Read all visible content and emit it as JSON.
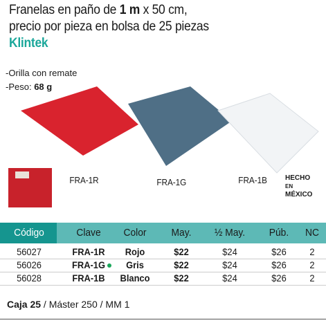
{
  "header": {
    "title_pre": "Franelas en paño de ",
    "title_bold": "1 m",
    "title_post": " x 50 cm,",
    "title_line2": "precio por pieza en bolsa de 25 piezas",
    "brand": "Klintek"
  },
  "features": [
    {
      "text": "-Orilla con remate"
    },
    {
      "text": "-Peso: ",
      "bold": "68 g"
    }
  ],
  "products": [
    {
      "label": "FRA-1R"
    },
    {
      "label": "FRA-1G"
    },
    {
      "label": "FRA-1B"
    }
  ],
  "badge": {
    "line1": "HECHO",
    "line2": "EN",
    "line3": "MÉXICO"
  },
  "table": {
    "columns": [
      "Código",
      "Clave",
      "Color",
      "May.",
      "½ May.",
      "Púb.",
      "NC"
    ],
    "rows": [
      {
        "cells": [
          "56027",
          "FRA-1R",
          "Rojo",
          "$22",
          "$24",
          "$26",
          "2"
        ],
        "new": false
      },
      {
        "cells": [
          "56026",
          "FRA-1G",
          "Gris",
          "$22",
          "$24",
          "$26",
          "2"
        ],
        "new": true
      },
      {
        "cells": [
          "56028",
          "FRA-1B",
          "Blanco",
          "$22",
          "$24",
          "$26",
          "2"
        ],
        "new": false
      }
    ]
  },
  "footer": {
    "bold": "Caja 25",
    "rest": " / Máster 250 / MM 1"
  }
}
